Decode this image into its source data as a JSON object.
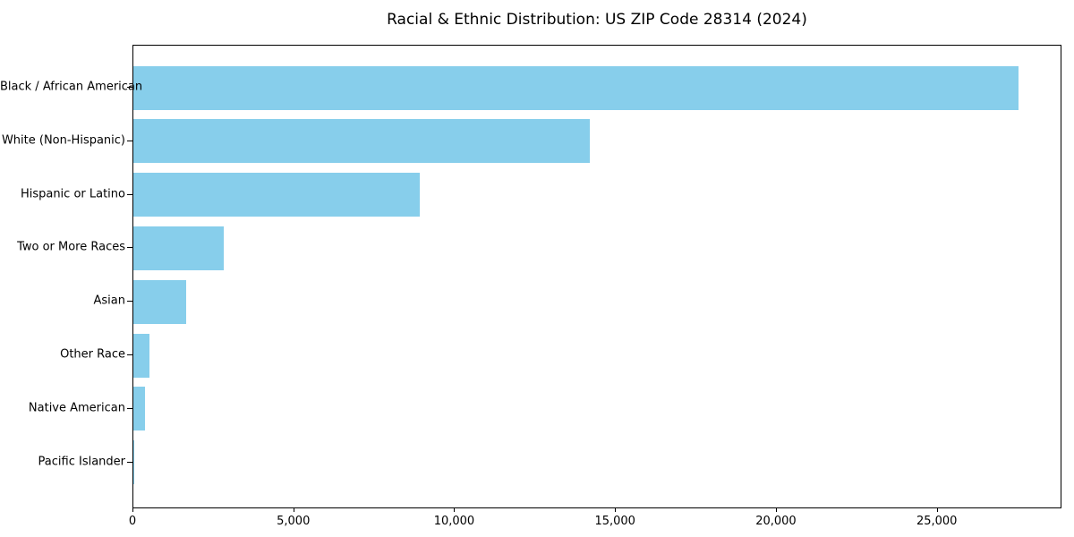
{
  "chart_data": {
    "type": "bar",
    "orientation": "horizontal",
    "title": "Racial & Ethnic Distribution: US ZIP Code 28314 (2024)",
    "categories": [
      "Black / African American",
      "White (Non-Hispanic)",
      "Hispanic or Latino",
      "Two or More Races",
      "Asian",
      "Other Race",
      "Native American",
      "Pacific Islander"
    ],
    "values": [
      27500,
      14200,
      8900,
      2800,
      1650,
      500,
      350,
      25
    ],
    "xlabel": "",
    "ylabel": "",
    "xlim": [
      0,
      28875
    ],
    "x_ticks": [
      0,
      5000,
      10000,
      15000,
      20000,
      25000
    ],
    "x_tick_labels": [
      "0",
      "5,000",
      "10,000",
      "15,000",
      "20,000",
      "25,000"
    ],
    "bar_color": "#87CEEB",
    "axis_color": "#000000",
    "background_color": "#FFFFFF",
    "grid": false,
    "legend": "none"
  }
}
